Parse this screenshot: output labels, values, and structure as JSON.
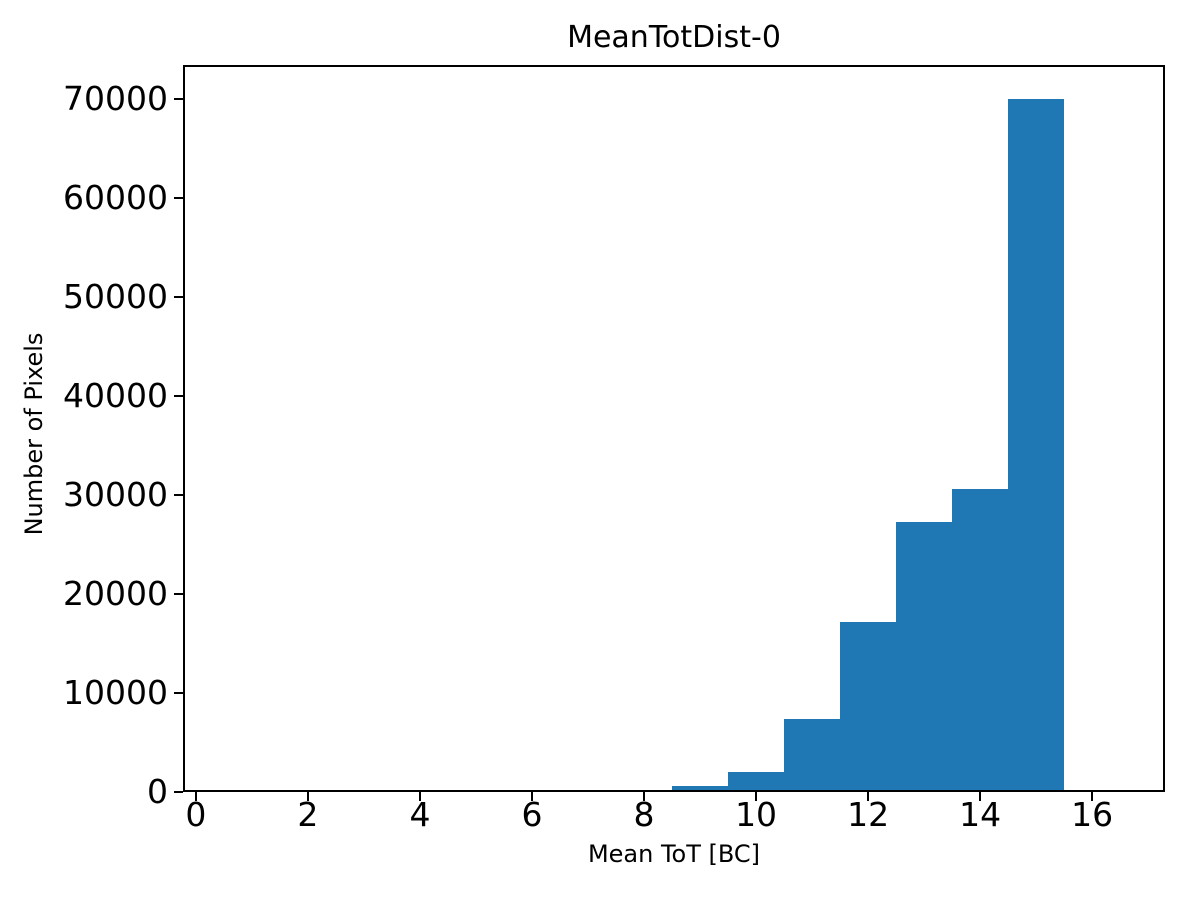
{
  "chart_data": {
    "type": "bar",
    "subtype": "histogram",
    "title": "MeanTotDist-0",
    "xlabel": "Mean ToT [BC]",
    "ylabel": "Number of Pixels",
    "bar_color": "#1f77b4",
    "background_color": "#ffffff",
    "axis_color": "#000000",
    "grid": false,
    "legend": "none",
    "bins": [
      {
        "x0": 8.5,
        "x1": 9.5,
        "count": 400
      },
      {
        "x0": 9.5,
        "x1": 10.5,
        "count": 1800
      },
      {
        "x0": 10.5,
        "x1": 11.5,
        "count": 7200
      },
      {
        "x0": 11.5,
        "x1": 12.5,
        "count": 17000
      },
      {
        "x0": 12.5,
        "x1": 13.5,
        "count": 27100
      },
      {
        "x0": 13.5,
        "x1": 14.5,
        "count": 30400
      },
      {
        "x0": 14.5,
        "x1": 15.5,
        "count": 69800
      }
    ],
    "x_ticks": [
      0,
      2,
      4,
      6,
      8,
      10,
      12,
      14,
      16
    ],
    "y_ticks": [
      0,
      10000,
      20000,
      30000,
      40000,
      50000,
      60000,
      70000
    ],
    "xlim": [
      -0.23,
      17.3
    ],
    "ylim": [
      0,
      73400
    ]
  }
}
